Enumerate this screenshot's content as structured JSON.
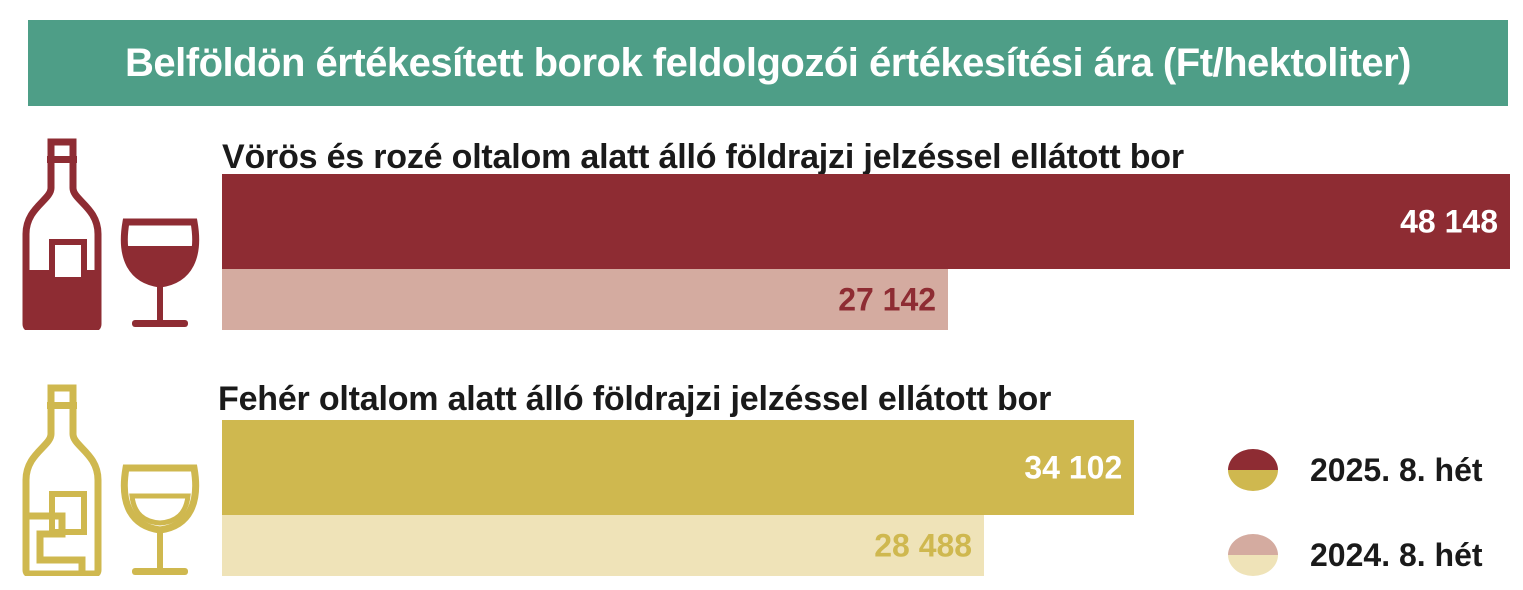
{
  "title": "Belföldön értékesített borok feldolgozói értékesítési ára  (Ft/hektoliter)",
  "chart_data": {
    "type": "bar",
    "orientation": "horizontal",
    "title": "Belföldön értékesített borok feldolgozói értékesítési ára  (Ft/hektoliter)",
    "categories": [
      "Vörös és rozé oltalom alatt álló földrajzi jelzéssel ellátott bor",
      "Fehér oltalom alatt álló földrajzi jelzéssel ellátott bor"
    ],
    "series": [
      {
        "name": "2025. 8. hét",
        "values": [
          48148,
          34102
        ],
        "labels": [
          "48 148",
          "34 102"
        ]
      },
      {
        "name": "2024. 8. hét",
        "values": [
          27142,
          28488
        ],
        "labels": [
          "27 142",
          "28 488"
        ]
      }
    ],
    "colors": {
      "red_2025": "#8e2c33",
      "red_2024": "#d4aba0",
      "white_2025": "#cfb84f",
      "white_2024": "#efe3b8",
      "title_band": "#4e9e87"
    },
    "value_label_colors": {
      "red_2025": "#ffffff",
      "red_2024": "#8e2c33",
      "white_2025": "#ffffff",
      "white_2024": "#cfb84f"
    },
    "legend_placement": "bottom-right",
    "grid": false
  },
  "icons": {
    "red_bottle": "red-wine-bottle-icon",
    "red_glass": "red-wine-glass-icon",
    "white_bottle": "white-wine-bottle-icon",
    "white_glass": "white-wine-glass-icon"
  }
}
